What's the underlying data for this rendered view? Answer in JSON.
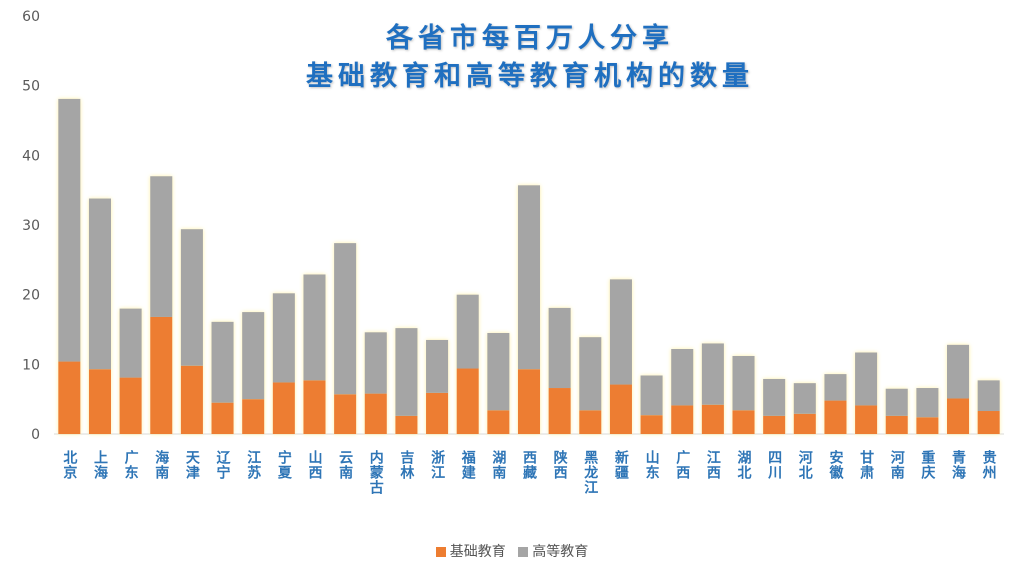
{
  "chart_data": {
    "type": "bar",
    "stacked": true,
    "title": "各省市每百万人分享",
    "subtitle": "基础教育和高等教育机构的数量",
    "ylim": [
      0,
      60
    ],
    "yticks": [
      0,
      10,
      20,
      30,
      40,
      50,
      60
    ],
    "grid": false,
    "legend_position": "bottom",
    "categories": [
      "北京",
      "上海",
      "广东",
      "海南",
      "天津",
      "辽宁",
      "江苏",
      "宁夏",
      "山西",
      "云南",
      "内蒙古",
      "吉林",
      "浙江",
      "福建",
      "湖南",
      "西藏",
      "陕西",
      "黑龙江",
      "新疆",
      "山东",
      "广西",
      "江西",
      "湖北",
      "四川",
      "河北",
      "安徽",
      "甘肃",
      "河南",
      "重庆",
      "青海",
      "贵州"
    ],
    "series": [
      {
        "name": "基础教育",
        "color": "#ed7d31",
        "values": [
          10.4,
          9.3,
          8.1,
          16.8,
          9.8,
          4.5,
          5.0,
          7.4,
          7.7,
          5.7,
          5.8,
          2.6,
          5.9,
          9.4,
          3.4,
          9.3,
          6.6,
          3.4,
          7.1,
          2.7,
          4.1,
          4.2,
          3.4,
          2.6,
          2.9,
          4.8,
          4.1,
          2.6,
          2.4,
          5.1,
          3.3
        ]
      },
      {
        "name": "高等教育",
        "color": "#a5a5a5",
        "values": [
          37.7,
          24.5,
          9.9,
          20.2,
          19.6,
          11.6,
          12.5,
          12.8,
          15.2,
          21.7,
          8.8,
          12.6,
          7.6,
          10.6,
          11.1,
          26.4,
          11.5,
          10.5,
          15.1,
          5.7,
          8.1,
          8.8,
          7.8,
          5.3,
          4.4,
          3.8,
          7.6,
          3.9,
          4.2,
          7.7,
          4.4
        ]
      }
    ]
  }
}
